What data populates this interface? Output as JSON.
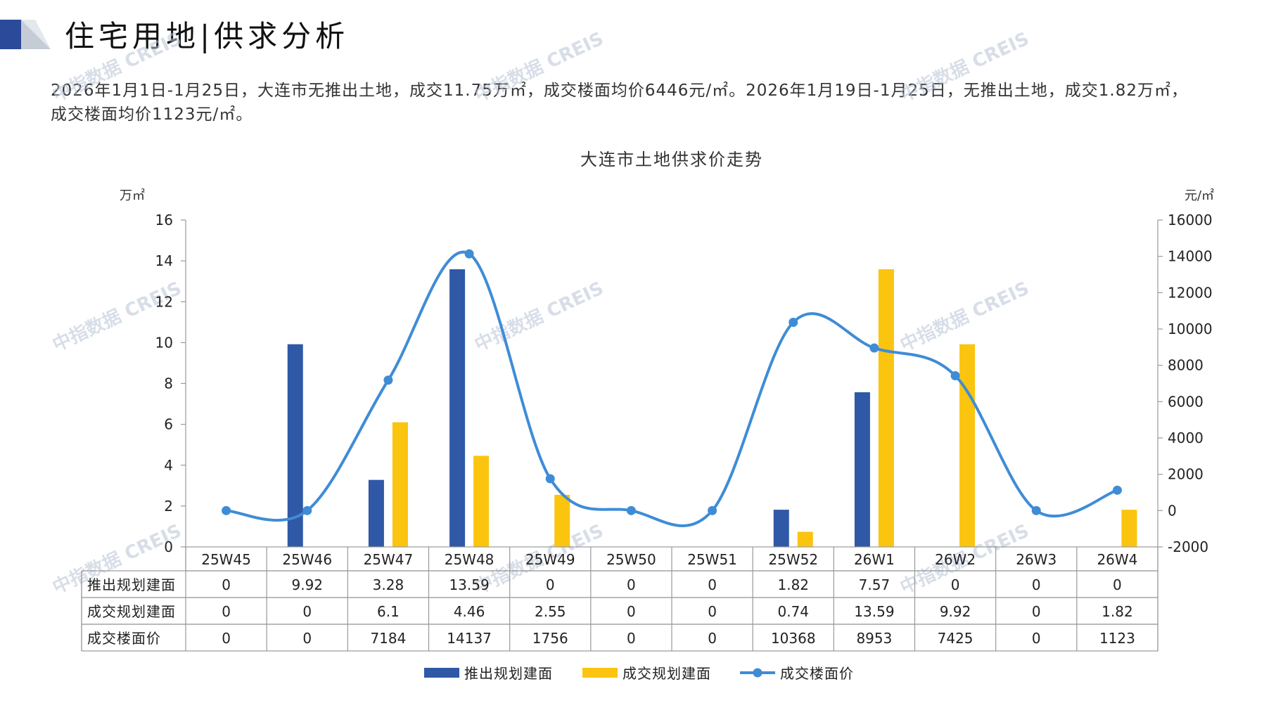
{
  "header": {
    "title": "住宅用地|供求分析",
    "summary": "2026年1月1日-1月25日，大连市无推出土地，成交11.75万㎡，成交楼面均价6446元/㎡。2026年1月19日-1月25日，无推出土地，成交1.82万㎡，成交楼面均价1123元/㎡。"
  },
  "watermark": "中指数据 CREIS",
  "colors": {
    "supply": "#2f58a6",
    "transaction": "#fbc40f",
    "price": "#3f8cd6",
    "logo_dark": "#2b4a99",
    "logo_grey": "#c5ccd6"
  },
  "chart_data": {
    "type": "bar",
    "title": "大连市土地供求价走势",
    "ylabel": "万㎡",
    "y2label": "元/㎡",
    "ylim": [
      0,
      16
    ],
    "yticks": [
      0,
      2,
      4,
      6,
      8,
      10,
      12,
      14,
      16
    ],
    "y2lim": [
      -2000,
      16000
    ],
    "y2ticks": [
      -2000,
      0,
      2000,
      4000,
      6000,
      8000,
      10000,
      12000,
      14000,
      16000
    ],
    "categories": [
      "25W45",
      "25W46",
      "25W47",
      "25W48",
      "25W49",
      "25W50",
      "25W51",
      "25W52",
      "26W1",
      "26W2",
      "26W3",
      "26W4"
    ],
    "series": [
      {
        "name": "推出规划建面",
        "type": "bar",
        "axis": "left",
        "values": [
          0,
          9.92,
          3.28,
          13.59,
          0,
          0,
          0,
          1.82,
          7.57,
          0,
          0,
          0
        ]
      },
      {
        "name": "成交规划建面",
        "type": "bar",
        "axis": "left",
        "values": [
          0,
          0,
          6.1,
          4.46,
          2.55,
          0,
          0,
          0.74,
          13.59,
          9.92,
          0,
          1.82
        ]
      },
      {
        "name": "成交楼面价",
        "type": "line",
        "axis": "right",
        "values": [
          0,
          0,
          7184,
          14137,
          1756,
          0,
          0,
          10368,
          8953,
          7425,
          0,
          1123
        ]
      }
    ],
    "table_display": [
      [
        "0",
        "9.92",
        "3.28",
        "13.59",
        "0",
        "0",
        "0",
        "1.82",
        "7.57",
        "0",
        "0",
        "0"
      ],
      [
        "0",
        "0",
        "6.1",
        "4.46",
        "2.55",
        "0",
        "0",
        "0.74",
        "13.59",
        "9.92",
        "0",
        "1.82"
      ],
      [
        "0",
        "0",
        "7184",
        "14137",
        "1756",
        "0",
        "0",
        "10368",
        "8953",
        "7425",
        "0",
        "1123"
      ]
    ],
    "legend": "bottom",
    "grid": false
  }
}
